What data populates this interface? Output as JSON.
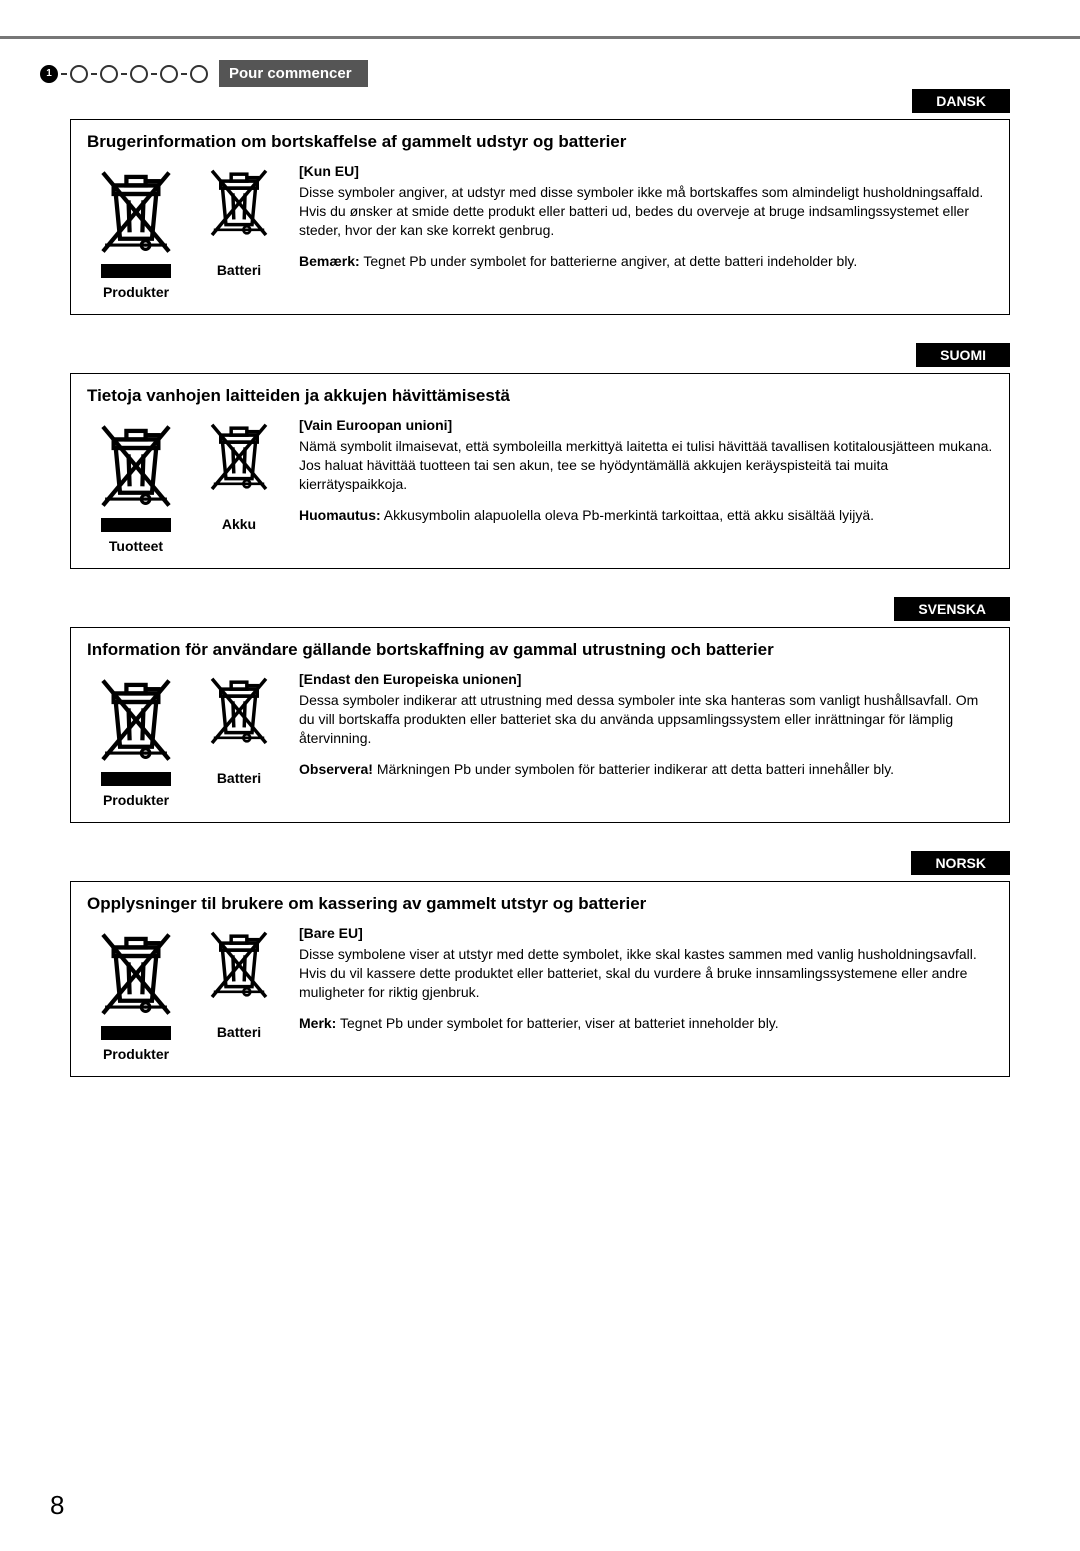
{
  "header": {
    "step_number": "1",
    "label": "Pour commencer"
  },
  "page_number": "8",
  "sections": [
    {
      "lang_tag": "DANSK",
      "title": "Brugerinformation om bortskaffelse af gammelt udstyr og batterier",
      "products_label": "Produkter",
      "battery_label": "Batteri",
      "subhead": "[Kun EU]",
      "body": "Disse symboler angiver, at udstyr med disse symboler ikke må bortskaffes som almindeligt husholdningsaffald. Hvis du ønsker at smide dette produkt eller batteri ud, bedes du overveje at bruge indsamlingssystemet eller steder, hvor der kan ske korrekt genbrug.",
      "note_label": "Bemærk:",
      "note_text": "Tegnet Pb under symbolet for batterierne angiver, at dette batteri indeholder bly."
    },
    {
      "lang_tag": "SUOMI",
      "title": "Tietoja vanhojen laitteiden ja akkujen hävittämisestä",
      "products_label": "Tuotteet",
      "battery_label": "Akku",
      "subhead": "[Vain Euroopan unioni]",
      "body": "Nämä symbolit ilmaisevat, että symboleilla merkittyä laitetta ei tulisi hävittää tavallisen kotitalousjätteen mukana. Jos haluat hävittää tuotteen tai sen akun, tee se hyödyntämällä akkujen keräyspisteitä tai muita kierrätyspaikkoja.",
      "note_label": "Huomautus:",
      "note_text": "Akkusymbolin alapuolella oleva Pb-merkintä tarkoittaa, että akku sisältää lyijyä."
    },
    {
      "lang_tag": "SVENSKA",
      "title": "Information för användare gällande bortskaffning av gammal utrustning och batterier",
      "products_label": "Produkter",
      "battery_label": "Batteri",
      "subhead": "[Endast den Europeiska unionen]",
      "body": "Dessa symboler indikerar att utrustning med dessa symboler inte ska hanteras som vanligt hushållsavfall. Om du vill bortskaffa produkten eller batteriet ska du använda uppsamlingssystem eller inrättningar för lämplig återvinning.",
      "note_label": "Observera!",
      "note_text": "Märkningen Pb under symbolen för batterier indikerar att detta batteri innehåller bly."
    },
    {
      "lang_tag": "NORSK",
      "title": "Opplysninger til brukere om kassering av gammelt utstyr og batterier",
      "products_label": "Produkter",
      "battery_label": "Batteri",
      "subhead": "[Bare EU]",
      "body": "Disse symbolene viser at utstyr med dette symbolet, ikke skal kastes sammen med vanlig husholdningsavfall. Hvis du vil kassere dette produktet eller batteriet, skal du vurdere å bruke innsamlingssystemene eller andre muligheter for riktig gjenbruk.",
      "note_label": "Merk:",
      "note_text": "Tegnet Pb under symbolet for batterier, viser at batteriet inneholder bly."
    }
  ]
}
